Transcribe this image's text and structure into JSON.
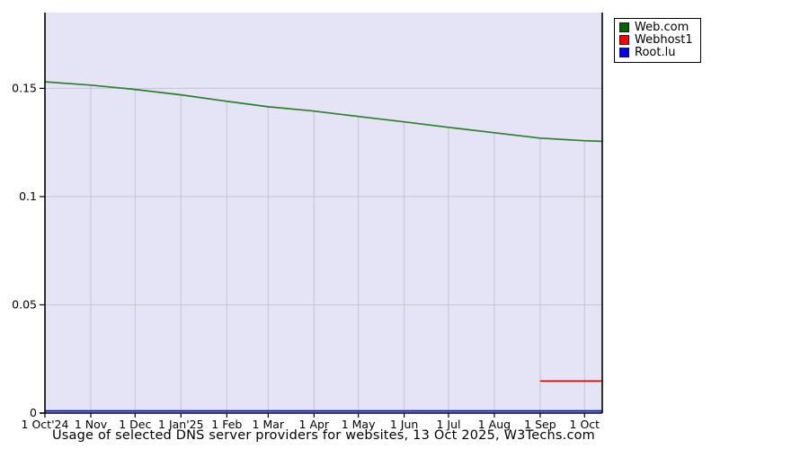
{
  "chart_data": {
    "type": "line",
    "title": "Usage of selected DNS server providers for websites, 13 Oct 2025, W3Techs.com",
    "xlabel": "",
    "ylabel": "",
    "x_unit": "days since 1 Oct 2024",
    "xlim": [
      0,
      377
    ],
    "ylim": [
      0,
      0.185
    ],
    "grid": true,
    "legend_position": "top-right-outside",
    "yticks": [
      0,
      0.05,
      0.1,
      0.15
    ],
    "ytick_labels": [
      "0",
      "0.05",
      "0.1",
      "0.15"
    ],
    "xticks": [
      0,
      31,
      61,
      92,
      123,
      151,
      182,
      212,
      243,
      273,
      304,
      335,
      365
    ],
    "xtick_labels": [
      "1 Oct'24",
      "1 Nov",
      "1 Dec",
      "1 Jan'25",
      "1 Feb",
      "1 Mar",
      "1 Apr",
      "1 May",
      "1 Jun",
      "1 Jul",
      "1 Aug",
      "1 Sep",
      "1 Oct"
    ],
    "series": [
      {
        "name": "Web.com",
        "line_color": "#2c7f2c",
        "swatch_color": "#006400",
        "x": [
          0,
          31,
          61,
          92,
          123,
          151,
          182,
          212,
          243,
          273,
          304,
          335,
          365,
          377
        ],
        "y": [
          0.153,
          0.1515,
          0.1495,
          0.147,
          0.144,
          0.1415,
          0.1395,
          0.137,
          0.1345,
          0.132,
          0.1295,
          0.127,
          0.1258,
          0.1255
        ]
      },
      {
        "name": "Webhost1",
        "line_color": "#e00000",
        "swatch_color": "#ff0000",
        "x": [
          335,
          377
        ],
        "y": [
          0.0148,
          0.0148
        ]
      },
      {
        "name": "Root.lu",
        "line_color": "#0000d0",
        "swatch_color": "#0000ff",
        "x": [
          0,
          377
        ],
        "y": [
          0.001,
          0.001
        ]
      }
    ],
    "colors": {
      "page_bg": "#ffffff",
      "plot_bg": "#e4e4f6",
      "grid": "#c4c4cf",
      "axis": "#000000",
      "legend_bg": "#ffffff",
      "legend_border": "#000000",
      "text": "#000000"
    }
  }
}
